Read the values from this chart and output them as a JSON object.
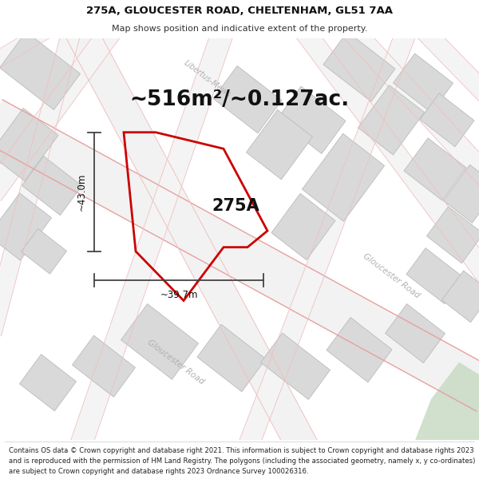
{
  "title_line1": "275A, GLOUCESTER ROAD, CHELTENHAM, GL51 7AA",
  "title_line2": "Map shows position and indicative extent of the property.",
  "area_text": "~516m²/~0.127ac.",
  "label_275A": "275A",
  "dim_height": "~43.0m",
  "dim_width": "~39.7m",
  "background_color": "#ffffff",
  "building_color": "#d9d9d9",
  "building_edge_color": "#bbbbbb",
  "road_line_color": "#e8a0a0",
  "road_line_color2": "#f0c0c0",
  "property_color": "#cc0000",
  "dim_line_color": "#444444",
  "street_label_color": "#b0b0b0",
  "footer_text": "Contains OS data © Crown copyright and database right 2021. This information is subject to Crown copyright and database rights 2023 and is reproduced with the permission of HM Land Registry. The polygons (including the associated geometry, namely x, y co-ordinates) are subject to Crown copyright and database rights 2023 Ordnance Survey 100026316.",
  "map_bg": "#f7f7f7",
  "green_color": "#c5d9c0"
}
